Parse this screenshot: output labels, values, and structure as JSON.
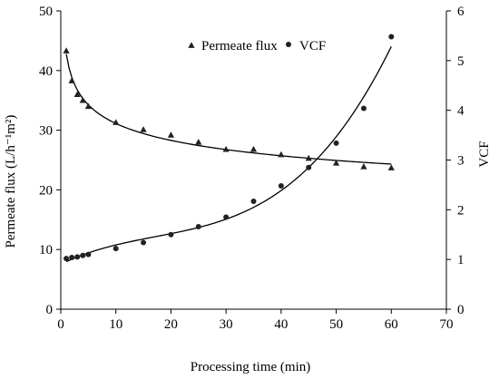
{
  "chart_data": {
    "type": "scatter",
    "xlabel": "Processing time (min)",
    "ylabel_left": "Permeate flux (L/h⁻¹m²)",
    "ylabel_right": "VCF",
    "xlim": [
      0,
      70
    ],
    "ylim_left": [
      0,
      50
    ],
    "ylim_right": [
      0,
      6
    ],
    "x_ticks": [
      0,
      10,
      20,
      30,
      40,
      50,
      60,
      70
    ],
    "y_left_ticks": [
      0,
      10,
      20,
      30,
      40,
      50
    ],
    "y_right_ticks": [
      0,
      1,
      2,
      3,
      4,
      5,
      6
    ],
    "grid": false,
    "legend_placement": "top-center",
    "series": [
      {
        "name": "Permeate flux",
        "axis": "left",
        "marker": "triangle",
        "x": [
          1,
          2,
          3,
          4,
          5,
          10,
          15,
          20,
          25,
          30,
          35,
          40,
          45,
          50,
          55,
          60
        ],
        "y": [
          43.3,
          38.3,
          36.0,
          35.0,
          34.0,
          31.3,
          30.1,
          29.2,
          28.0,
          26.8,
          26.8,
          25.9,
          25.3,
          24.5,
          23.9,
          23.7
        ]
      },
      {
        "name": "VCF",
        "axis": "right",
        "marker": "circle",
        "x": [
          1,
          2,
          3,
          4,
          5,
          10,
          15,
          20,
          25,
          30,
          35,
          40,
          45,
          50,
          55,
          60
        ],
        "y": [
          1.02,
          1.04,
          1.05,
          1.08,
          1.1,
          1.22,
          1.34,
          1.5,
          1.66,
          1.85,
          2.17,
          2.48,
          2.85,
          3.34,
          4.04,
          5.48
        ]
      }
    ]
  }
}
